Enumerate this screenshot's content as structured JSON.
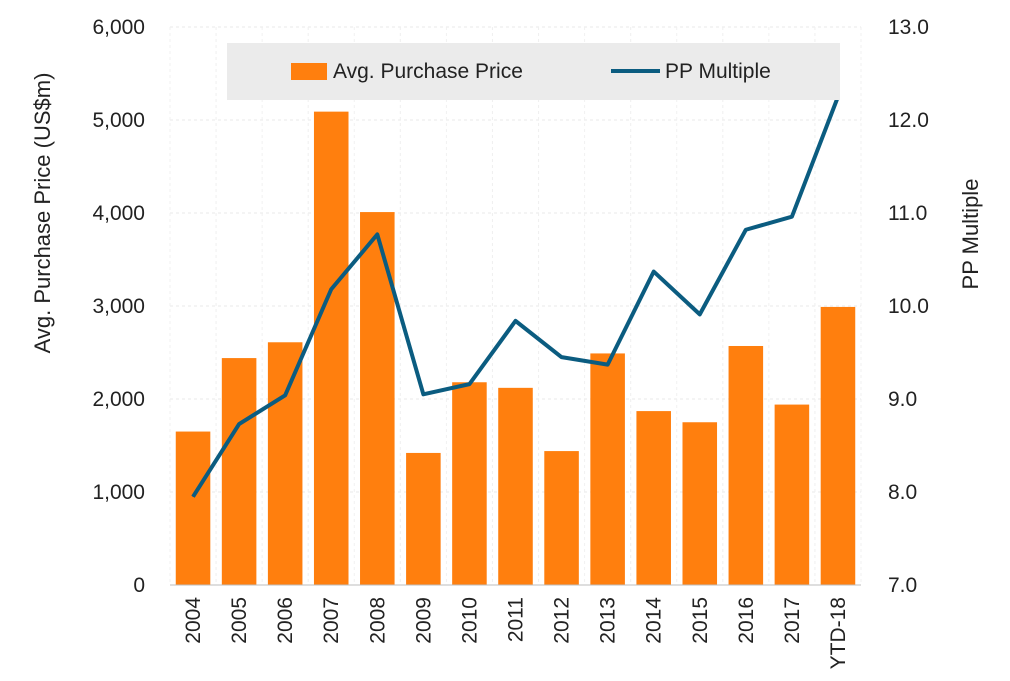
{
  "chart_data": {
    "type": "bar+line",
    "categories": [
      "2004",
      "2005",
      "2006",
      "2007",
      "2008",
      "2009",
      "2010",
      "2011",
      "2012",
      "2013",
      "2014",
      "2015",
      "2016",
      "2017",
      "YTD-18"
    ],
    "series": [
      {
        "name": "Avg. Purchase Price",
        "type": "bar",
        "axis": "left",
        "color": "#FF7F0E",
        "values": [
          1650,
          2440,
          2610,
          5090,
          4010,
          1420,
          2180,
          2120,
          1440,
          2490,
          1870,
          1750,
          2570,
          1940,
          2990
        ]
      },
      {
        "name": "PP Multiple",
        "type": "line",
        "axis": "right",
        "color": "#0B5C80",
        "values": [
          7.95,
          8.73,
          9.04,
          10.18,
          10.77,
          9.05,
          9.16,
          9.84,
          9.45,
          9.37,
          10.37,
          9.91,
          10.82,
          10.96,
          12.25
        ]
      }
    ],
    "ylabel": "Avg. Purchase Price (US$m)",
    "y2label": "PP Multiple",
    "ylim": [
      0,
      6000
    ],
    "y2lim": [
      7.0,
      13.0
    ],
    "yticks": [
      "0",
      "1,000",
      "2,000",
      "3,000",
      "4,000",
      "5,000",
      "6,000"
    ],
    "y2ticks": [
      "7.0",
      "8.0",
      "9.0",
      "10.0",
      "11.0",
      "12.0",
      "13.0"
    ],
    "legend_position": "top-center",
    "gridlines": true
  },
  "colors": {
    "bar": "#FF7F0E",
    "line": "#0B5C80",
    "legend_bg": "#EBEBEB",
    "grid": "#E8E8E8"
  }
}
